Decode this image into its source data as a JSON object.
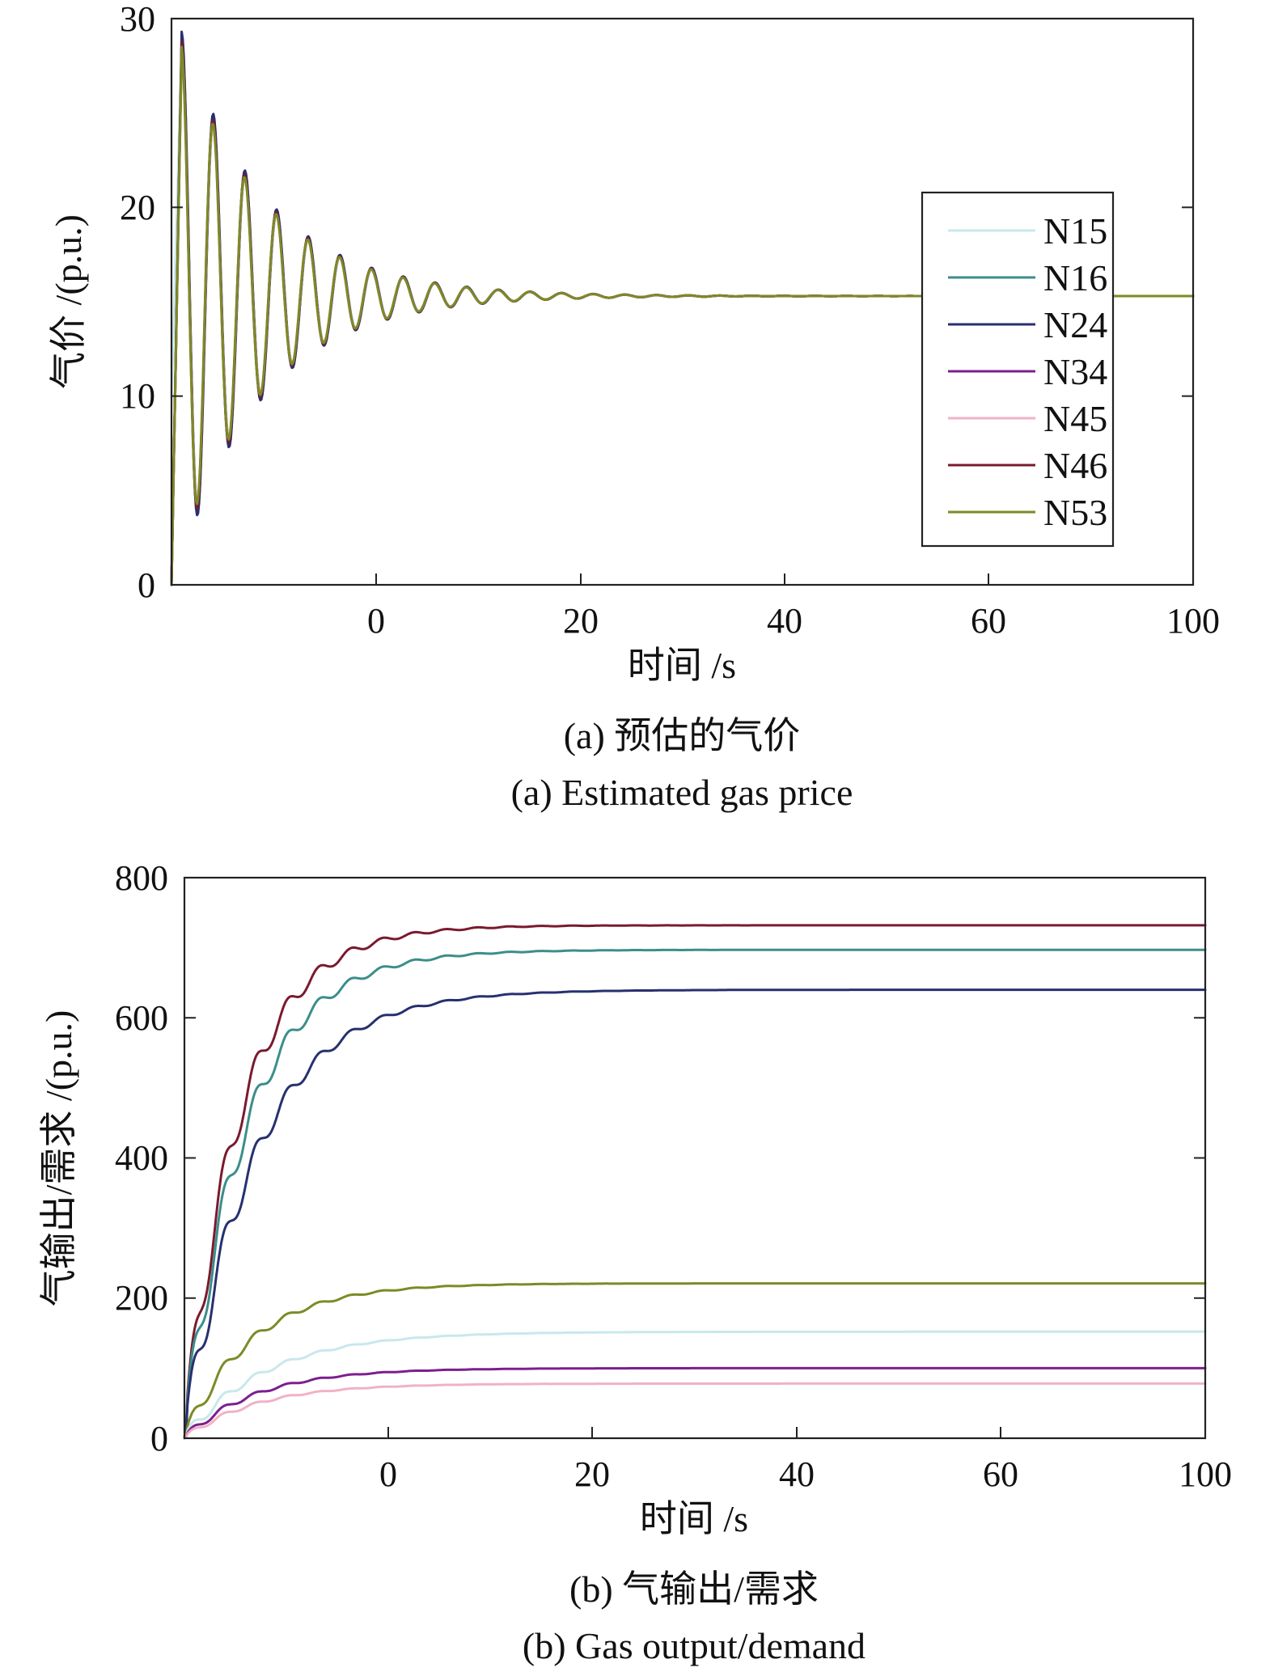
{
  "chart_data": [
    {
      "type": "line",
      "xlabel": "时间 /s",
      "ylabel": "气价 /(p.u.)",
      "xticks": [
        "0",
        "20",
        "40",
        "60",
        "100"
      ],
      "yticks": [
        "0",
        "10",
        "20",
        "30"
      ],
      "ylim": [
        0,
        30
      ],
      "grid": false,
      "legend_position": "right",
      "caption_cn": "(a) 预估的气价",
      "caption_en": "(a) Estimated gas price",
      "final_value": 15.3,
      "series": [
        {
          "name": "N15",
          "color": "#c8e8ec",
          "peak": 28.5
        },
        {
          "name": "N16",
          "color": "#3b8e8a",
          "peak": 29.0
        },
        {
          "name": "N24",
          "color": "#27306f",
          "peak": 29.3
        },
        {
          "name": "N34",
          "color": "#7b1f8e",
          "peak": 28.6
        },
        {
          "name": "N45",
          "color": "#f0b2c6",
          "peak": 28.4
        },
        {
          "name": "N46",
          "color": "#7a1a2e",
          "peak": 28.8
        },
        {
          "name": "N53",
          "color": "#7d8a26",
          "peak": 28.5
        }
      ]
    },
    {
      "type": "line",
      "xlabel": "时间  /s",
      "ylabel": "气输出/需求 /(p.u.)",
      "xticks": [
        "0",
        "20",
        "40",
        "60",
        "100"
      ],
      "yticks": [
        "0",
        "200",
        "400",
        "600",
        "800"
      ],
      "ylim": [
        0,
        800
      ],
      "grid": false,
      "caption_cn": "(b) 气输出/需求",
      "caption_en": "(b) Gas output/demand",
      "series": [
        {
          "name": "N46",
          "color": "#7a1a2e",
          "final": 732
        },
        {
          "name": "N16",
          "color": "#3b8e8a",
          "final": 697
        },
        {
          "name": "N24",
          "color": "#27306f",
          "final": 640
        },
        {
          "name": "N53",
          "color": "#7d8a26",
          "final": 221
        },
        {
          "name": "N15",
          "color": "#c8e8ec",
          "final": 152
        },
        {
          "name": "N34",
          "color": "#7b1f8e",
          "final": 100
        },
        {
          "name": "N45",
          "color": "#f0b2c6",
          "final": 78
        }
      ]
    }
  ]
}
